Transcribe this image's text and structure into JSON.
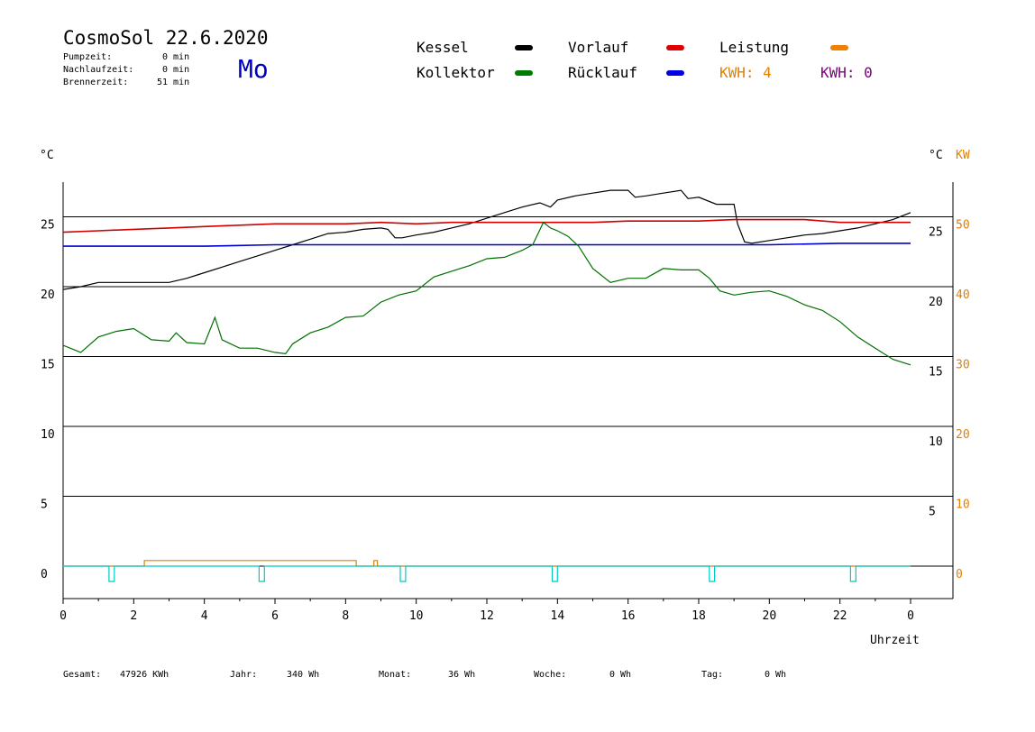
{
  "header": {
    "title": "CosmoSol 22.6.2020",
    "day": "Mo",
    "stats": [
      {
        "label": "Pumpzeit:",
        "value": "0 min"
      },
      {
        "label": "Nachlaufzeit:",
        "value": "0 min"
      },
      {
        "label": "Brennerzeit:",
        "value": "51 min"
      }
    ]
  },
  "legend": {
    "kessel": {
      "label": "Kessel",
      "color": "#000000"
    },
    "kollektor": {
      "label": "Kollektor",
      "color": "#007a00"
    },
    "vorlauf": {
      "label": "Vorlauf",
      "color": "#e00000"
    },
    "ruecklauf": {
      "label": "Rücklauf",
      "color": "#0000e0"
    },
    "leistung": {
      "label": "Leistung",
      "color": "#f08000"
    },
    "kwh1": "KWH: 4",
    "kwh2": "KWH: 0",
    "kwh1_color": "#e08000",
    "kwh2_color": "#800080"
  },
  "footer": {
    "gesamt_label": "Gesamt:",
    "gesamt_value": "47926 KWh",
    "jahr_label": "Jahr:",
    "jahr_value": "340 Wh",
    "monat_label": "Monat:",
    "monat_value": "36 Wh",
    "woche_label": "Woche:",
    "woche_value": "0 Wh",
    "tag_label": "Tag:",
    "tag_value": "0 Wh"
  },
  "chart_data": {
    "type": "line",
    "xlabel": "Uhrzeit",
    "y_left_unit": "°C",
    "y_right_unit_1": "°C",
    "y_right_unit_2": "KW",
    "xlim": [
      0,
      24
    ],
    "ylim": [
      -2,
      28
    ],
    "x_ticks": [
      "0",
      "2",
      "4",
      "6",
      "8",
      "10",
      "12",
      "14",
      "16",
      "18",
      "20",
      "22",
      "0"
    ],
    "y_left_ticks": [
      "0",
      "5",
      "10",
      "15",
      "20",
      "25"
    ],
    "y_right_ticks": [
      "5",
      "10",
      "15",
      "20",
      "25"
    ],
    "y_kw_ticks": [
      "0",
      "10",
      "20",
      "30",
      "40",
      "50"
    ],
    "series": [
      {
        "name": "Kessel",
        "color": "#000000",
        "x": [
          0,
          0.5,
          1,
          1.5,
          2,
          2.5,
          3,
          3.5,
          4,
          4.5,
          5,
          5.5,
          6,
          6.5,
          7,
          7.5,
          8,
          8.5,
          9,
          9.2,
          9.4,
          9.6,
          10,
          10.5,
          11,
          11.5,
          12,
          12.5,
          13,
          13.5,
          13.8,
          14,
          14.5,
          15,
          15.5,
          16,
          16.2,
          16.5,
          17,
          17.5,
          17.7,
          18,
          18.5,
          19,
          19.1,
          19.3,
          19.5,
          20,
          20.5,
          21,
          21.5,
          22,
          22.5,
          23,
          23.5,
          24
        ],
        "y": [
          19.8,
          20,
          20.3,
          20.3,
          20.3,
          20.3,
          20.3,
          20.6,
          21,
          21.4,
          21.8,
          22.2,
          22.6,
          23,
          23.4,
          23.8,
          23.9,
          24.1,
          24.2,
          24.1,
          23.5,
          23.5,
          23.7,
          23.9,
          24.2,
          24.5,
          24.9,
          25.3,
          25.7,
          26,
          25.7,
          26.2,
          26.5,
          26.7,
          26.9,
          26.9,
          26.4,
          26.5,
          26.7,
          26.9,
          26.3,
          26.4,
          25.9,
          25.9,
          24.5,
          23.2,
          23.1,
          23.3,
          23.5,
          23.7,
          23.8,
          24,
          24.2,
          24.5,
          24.8,
          25.3
        ]
      },
      {
        "name": "Vorlauf",
        "color": "#d00000",
        "x": [
          0,
          1,
          2,
          3,
          4,
          5,
          6,
          7,
          8,
          9,
          10,
          11,
          12,
          13,
          14,
          15,
          16,
          17,
          18,
          19,
          20,
          21,
          22,
          23,
          24
        ],
        "y": [
          23.9,
          24,
          24.1,
          24.2,
          24.3,
          24.4,
          24.5,
          24.5,
          24.5,
          24.6,
          24.5,
          24.6,
          24.6,
          24.6,
          24.6,
          24.6,
          24.7,
          24.7,
          24.7,
          24.8,
          24.8,
          24.8,
          24.6,
          24.6,
          24.6
        ]
      },
      {
        "name": "Rücklauf",
        "color": "#0000d0",
        "x": [
          0,
          2,
          4,
          6,
          8,
          10,
          12,
          14,
          16,
          18,
          20,
          22,
          24
        ],
        "y": [
          22.9,
          22.9,
          22.9,
          23,
          23,
          23,
          23,
          23,
          23,
          23,
          23,
          23.1,
          23.1
        ]
      },
      {
        "name": "Kollektor",
        "color": "#007000",
        "x": [
          0,
          0.5,
          1,
          1.5,
          2,
          2.5,
          3,
          3.2,
          3.5,
          4,
          4.3,
          4.5,
          5,
          5.5,
          6,
          6.3,
          6.5,
          7,
          7.5,
          8,
          8.5,
          9,
          9.5,
          10,
          10.5,
          11,
          11.5,
          12,
          12.5,
          13,
          13.3,
          13.6,
          13.8,
          14,
          14.3,
          14.6,
          15,
          15.5,
          16,
          16.5,
          17,
          17.5,
          18,
          18.3,
          18.6,
          19,
          19.5,
          20,
          20.5,
          21,
          21.5,
          22,
          22.5,
          23,
          23.5,
          24
        ],
        "y": [
          15.8,
          15.3,
          16.4,
          16.8,
          17,
          16.2,
          16.1,
          16.7,
          16,
          15.9,
          17.8,
          16.2,
          15.6,
          15.6,
          15.3,
          15.2,
          15.9,
          16.7,
          17.1,
          17.8,
          17.9,
          18.9,
          19.4,
          19.7,
          20.7,
          21.1,
          21.5,
          22,
          22.1,
          22.6,
          23,
          24.6,
          24.2,
          24,
          23.6,
          22.9,
          21.3,
          20.3,
          20.6,
          20.6,
          21.3,
          21.2,
          21.2,
          20.6,
          19.7,
          19.4,
          19.6,
          19.7,
          19.3,
          18.7,
          18.3,
          17.5,
          16.4,
          15.6,
          14.8,
          14.4
        ]
      },
      {
        "name": "Leistung",
        "color": "#e08000",
        "x": [
          0,
          2.3,
          2.3,
          8.3,
          8.3,
          8.8,
          8.8,
          8.9,
          8.9,
          24
        ],
        "y": [
          0,
          0,
          0.4,
          0.4,
          0,
          0,
          0.4,
          0.4,
          0,
          0
        ]
      },
      {
        "name": "Pumpe",
        "color": "#00c8c8",
        "x": [
          0,
          1.3,
          1.3,
          1.45,
          1.45,
          5.55,
          5.55,
          5.7,
          5.7,
          9.55,
          9.55,
          9.7,
          9.7,
          13.85,
          13.85,
          14,
          14,
          18.3,
          18.3,
          18.45,
          18.45,
          22.3,
          22.3,
          22.45,
          22.45,
          24
        ],
        "y": [
          0,
          0,
          -1.1,
          -1.1,
          0,
          0,
          -1.1,
          -1.1,
          0,
          0,
          -1.1,
          -1.1,
          0,
          0,
          -1.1,
          -1.1,
          0,
          0,
          -1.1,
          -1.1,
          0,
          0,
          -1.1,
          -1.1,
          0,
          0
        ]
      }
    ]
  }
}
